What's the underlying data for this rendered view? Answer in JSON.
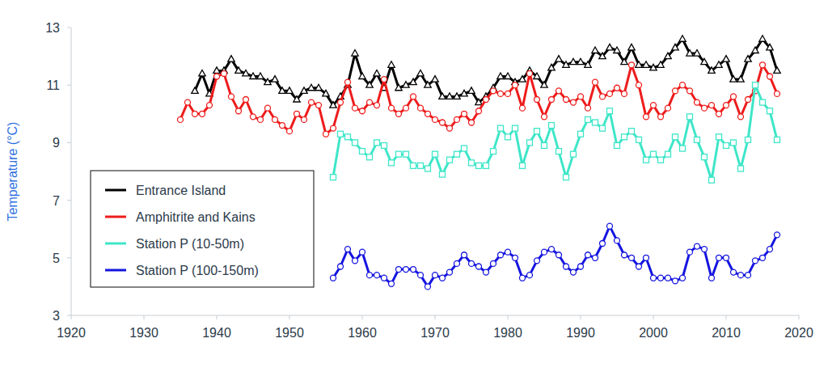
{
  "chart_data": {
    "type": "line",
    "y_label": "Temperature (°C)",
    "x": [
      1935,
      1936,
      1937,
      1938,
      1939,
      1940,
      1941,
      1942,
      1943,
      1944,
      1945,
      1946,
      1947,
      1948,
      1949,
      1950,
      1951,
      1952,
      1953,
      1954,
      1955,
      1956,
      1957,
      1958,
      1959,
      1960,
      1961,
      1962,
      1963,
      1964,
      1965,
      1966,
      1967,
      1968,
      1969,
      1970,
      1971,
      1972,
      1973,
      1974,
      1975,
      1976,
      1977,
      1978,
      1979,
      1980,
      1981,
      1982,
      1983,
      1984,
      1985,
      1986,
      1987,
      1988,
      1989,
      1990,
      1991,
      1992,
      1993,
      1994,
      1995,
      1996,
      1997,
      1998,
      1999,
      2000,
      2001,
      2002,
      2003,
      2004,
      2005,
      2006,
      2007,
      2008,
      2009,
      2010,
      2011,
      2012,
      2013,
      2014,
      2015,
      2016,
      2017
    ],
    "series": [
      {
        "name": "Entrance Island",
        "color": "#000000",
        "marker": "triangle",
        "values": [
          null,
          null,
          10.8,
          11.4,
          10.7,
          11.5,
          11.5,
          11.9,
          11.5,
          11.4,
          11.3,
          11.3,
          11.1,
          11.2,
          10.8,
          10.8,
          10.5,
          10.8,
          10.9,
          10.9,
          10.7,
          10.3,
          10.6,
          11.0,
          12.1,
          11.3,
          11.0,
          11.4,
          10.9,
          11.7,
          10.9,
          11.0,
          11.1,
          11.4,
          11.0,
          11.2,
          10.6,
          10.6,
          10.6,
          10.7,
          10.8,
          10.4,
          10.6,
          10.9,
          11.3,
          11.3,
          11.1,
          11.2,
          11.5,
          11.3,
          11.0,
          11.6,
          11.9,
          11.7,
          11.8,
          11.8,
          11.7,
          12.2,
          12.0,
          12.3,
          12.2,
          11.8,
          12.3,
          11.7,
          11.7,
          11.6,
          11.7,
          12.0,
          12.3,
          12.6,
          12.1,
          12.1,
          11.8,
          11.5,
          11.7,
          11.9,
          11.2,
          11.2,
          11.9,
          12.2,
          12.6,
          12.3,
          11.5
        ]
      },
      {
        "name": "Amphitrite and Kains",
        "color": "#ee1c1c",
        "marker": "circle",
        "values": [
          9.8,
          10.4,
          10.0,
          10.0,
          10.3,
          11.3,
          11.4,
          10.6,
          10.1,
          10.5,
          9.9,
          9.8,
          10.2,
          9.8,
          9.6,
          9.4,
          10.0,
          9.8,
          10.4,
          10.3,
          9.3,
          9.5,
          10.4,
          11.1,
          10.2,
          10.1,
          10.4,
          10.3,
          11.2,
          10.2,
          10.0,
          10.2,
          10.6,
          10.2,
          10.0,
          9.8,
          9.7,
          9.5,
          9.8,
          10.0,
          9.7,
          10.1,
          10.5,
          10.8,
          10.7,
          10.7,
          11.0,
          10.2,
          11.4,
          10.5,
          9.9,
          10.5,
          10.8,
          10.5,
          10.4,
          10.6,
          10.2,
          11.1,
          10.6,
          10.7,
          10.9,
          10.7,
          11.7,
          11.0,
          9.9,
          10.3,
          9.9,
          10.2,
          10.8,
          11.0,
          10.8,
          10.4,
          10.2,
          10.3,
          10.0,
          10.3,
          10.6,
          9.9,
          10.5,
          10.8,
          11.7,
          11.3,
          10.7
        ]
      },
      {
        "name": "Station P (10-50m)",
        "color": "#3ee6c8",
        "marker": "square",
        "values": [
          null,
          null,
          null,
          null,
          null,
          null,
          null,
          null,
          null,
          null,
          null,
          null,
          null,
          null,
          null,
          null,
          null,
          null,
          null,
          null,
          null,
          7.8,
          9.3,
          9.2,
          9.0,
          8.7,
          8.5,
          9.0,
          8.9,
          8.3,
          8.6,
          8.6,
          8.2,
          8.2,
          8.1,
          8.6,
          7.9,
          8.4,
          8.6,
          8.8,
          8.3,
          8.2,
          8.2,
          8.7,
          9.5,
          9.2,
          9.5,
          8.2,
          9.0,
          9.4,
          8.9,
          9.6,
          8.7,
          7.8,
          8.6,
          9.3,
          9.8,
          9.7,
          9.5,
          10.1,
          8.9,
          9.2,
          9.4,
          9.1,
          8.4,
          8.6,
          8.4,
          8.6,
          9.2,
          8.8,
          9.9,
          9.1,
          8.5,
          7.7,
          9.2,
          8.9,
          9.0,
          8.1,
          9.1,
          11.0,
          10.4,
          10.1,
          9.1
        ]
      },
      {
        "name": "Station P (100-150m)",
        "color": "#1515e0",
        "marker": "circle",
        "values": [
          null,
          null,
          null,
          null,
          null,
          null,
          null,
          null,
          null,
          null,
          null,
          null,
          null,
          null,
          null,
          null,
          null,
          null,
          null,
          null,
          null,
          4.3,
          4.7,
          5.3,
          4.9,
          5.2,
          4.4,
          4.4,
          4.3,
          4.1,
          4.6,
          4.6,
          4.6,
          4.4,
          4.0,
          4.4,
          4.3,
          4.5,
          4.8,
          5.1,
          4.8,
          4.7,
          4.5,
          4.8,
          5.1,
          5.2,
          5.0,
          4.3,
          4.4,
          4.9,
          5.2,
          5.3,
          5.1,
          4.7,
          4.5,
          4.7,
          5.1,
          5.0,
          5.5,
          6.1,
          5.6,
          5.1,
          5.0,
          4.7,
          5.0,
          4.3,
          4.3,
          4.3,
          4.2,
          4.3,
          5.2,
          5.4,
          5.3,
          4.3,
          5.0,
          5.0,
          4.5,
          4.4,
          4.4,
          4.9,
          5.0,
          5.3,
          5.8
        ]
      }
    ],
    "xlim": [
      1920,
      2020
    ],
    "xticks": [
      1920,
      1930,
      1940,
      1950,
      1960,
      1970,
      1980,
      1990,
      2000,
      2010,
      2020
    ],
    "ylim": [
      3,
      13
    ],
    "yticks": [
      3,
      5,
      7,
      9,
      11,
      13
    ],
    "grid": false,
    "legend": "lower left"
  }
}
